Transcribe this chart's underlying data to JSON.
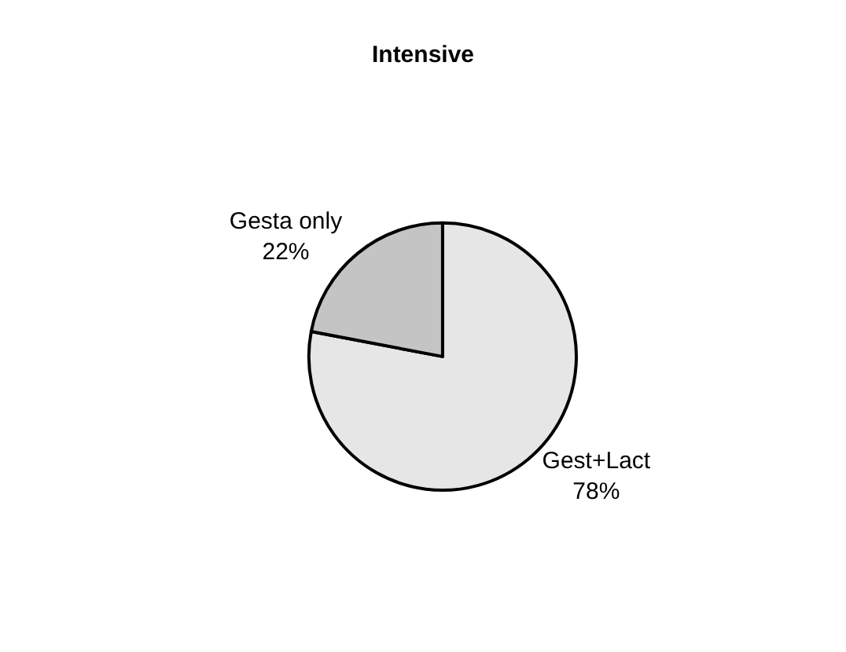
{
  "chart_data": {
    "type": "pie",
    "title": "Intensive",
    "categories": [
      "Gest+Lact",
      "Gesta only"
    ],
    "values": [
      78,
      22
    ],
    "value_labels": [
      "78%",
      "22%"
    ],
    "colors": [
      "#e6e6e6",
      "#c4c4c4"
    ],
    "legend": false
  }
}
